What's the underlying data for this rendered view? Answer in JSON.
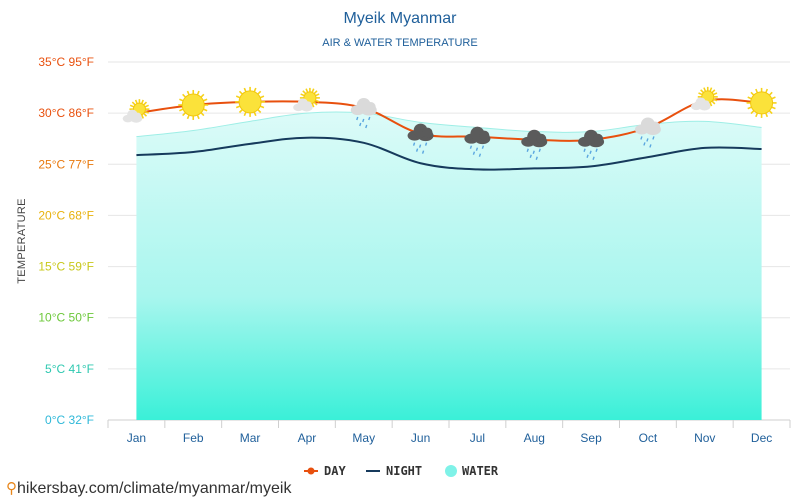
{
  "chart_data": {
    "type": "line",
    "title": "Myeik Myanmar",
    "subtitle": "AIR & WATER TEMPERATURE",
    "ylabel": "TEMPERATURE",
    "categories": [
      "Jan",
      "Feb",
      "Mar",
      "Apr",
      "May",
      "Jun",
      "Jul",
      "Aug",
      "Sep",
      "Oct",
      "Nov",
      "Dec"
    ],
    "ylim": [
      0,
      35
    ],
    "yticks": [
      {
        "value": 35,
        "label": "35°C 95°F",
        "color": "#e8500e"
      },
      {
        "value": 30,
        "label": "30°C 86°F",
        "color": "#e8500e"
      },
      {
        "value": 25,
        "label": "25°C 77°F",
        "color": "#e8790e"
      },
      {
        "value": 20,
        "label": "20°C 68°F",
        "color": "#e8b20e"
      },
      {
        "value": 15,
        "label": "15°C 59°F",
        "color": "#c8c81a"
      },
      {
        "value": 10,
        "label": "10°C 50°F",
        "color": "#6cc83a"
      },
      {
        "value": 5,
        "label": "5°C 41°F",
        "color": "#2ec8b0"
      },
      {
        "value": 0,
        "label": "0°C 32°F",
        "color": "#2eb8d8"
      }
    ],
    "series": [
      {
        "name": "DAY",
        "color": "#e8500e",
        "values": [
          30.0,
          30.8,
          31.1,
          31.1,
          30.5,
          28.0,
          27.7,
          27.4,
          27.4,
          28.6,
          31.2,
          31.0
        ]
      },
      {
        "name": "NIGHT",
        "color": "#163a5c",
        "values": [
          25.9,
          26.2,
          27.0,
          27.6,
          27.1,
          25.1,
          24.5,
          24.6,
          24.8,
          25.7,
          26.6,
          26.5
        ]
      },
      {
        "name": "WATER",
        "color": "#7ff2e8",
        "values": [
          27.7,
          28.3,
          29.2,
          30.0,
          30.0,
          29.1,
          28.6,
          28.2,
          28.2,
          28.9,
          29.2,
          28.6
        ]
      }
    ],
    "weather_icons": [
      "sun-cloud",
      "sun",
      "sun",
      "sun-cloud",
      "cloud-rain",
      "storm-rain",
      "storm-rain",
      "storm-rain",
      "storm-rain",
      "cloud-rain",
      "sun-cloud",
      "sun"
    ],
    "grid": true,
    "legend": "bottom-center"
  },
  "footer": {
    "text": "hikersbay.com/climate/myanmar/myeik",
    "icon": "map-pin-icon"
  }
}
